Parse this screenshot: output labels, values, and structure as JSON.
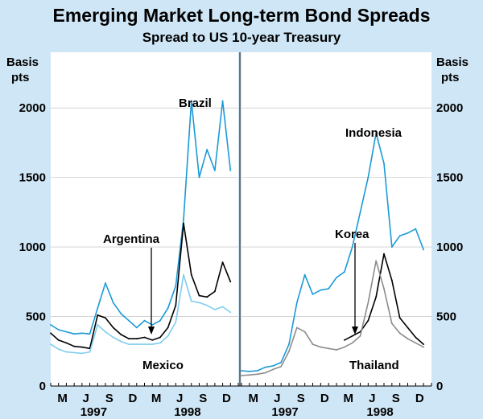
{
  "title": "Emerging Market Long-term Bond Spreads",
  "subtitle": "Spread to US 10-year Treasury",
  "colors": {
    "background": "#cfe6f6",
    "plot": "#ffffff",
    "brazil": "#1a9ad6",
    "argentina": "#000000",
    "mexico": "#7fcdee",
    "indonesia": "#1a9ad6",
    "korea": "#000000",
    "thailand": "#8c8c8c"
  },
  "chart_data": [
    {
      "type": "line",
      "panel": "left",
      "ylabel": "Basis pts",
      "ylim": [
        0,
        2400
      ],
      "yticks": [
        0,
        500,
        1000,
        1500,
        2000
      ],
      "month_ticks": [
        "M",
        "J",
        "S",
        "D",
        "M",
        "J",
        "S",
        "D"
      ],
      "years": [
        "1997",
        "1998"
      ],
      "x_range_months": [
        1,
        25
      ],
      "series": [
        {
          "name": "Brazil",
          "x": [
            1,
            2,
            3,
            4,
            5,
            6,
            7,
            8,
            9,
            10,
            11,
            12,
            13,
            14,
            15,
            16,
            17,
            18,
            19,
            20,
            21,
            22,
            23,
            24
          ],
          "values": [
            440,
            405,
            390,
            375,
            380,
            375,
            560,
            740,
            600,
            520,
            470,
            420,
            470,
            440,
            470,
            560,
            720,
            1200,
            2050,
            1500,
            1700,
            1550,
            2050,
            1550
          ]
        },
        {
          "name": "Argentina",
          "x": [
            1,
            2,
            3,
            4,
            5,
            6,
            7,
            8,
            9,
            10,
            11,
            12,
            13,
            14,
            15,
            16,
            17,
            18,
            19,
            20,
            21,
            22,
            23,
            24
          ],
          "values": [
            380,
            330,
            310,
            285,
            280,
            270,
            510,
            490,
            420,
            370,
            340,
            340,
            350,
            330,
            350,
            420,
            580,
            1170,
            800,
            650,
            640,
            680,
            890,
            750
          ]
        },
        {
          "name": "Mexico",
          "x": [
            1,
            2,
            3,
            4,
            5,
            6,
            7,
            8,
            9,
            10,
            11,
            12,
            13,
            14,
            15,
            16,
            17,
            18,
            19,
            20,
            21,
            22,
            23,
            24
          ],
          "values": [
            300,
            265,
            245,
            240,
            235,
            245,
            440,
            390,
            350,
            320,
            300,
            300,
            300,
            300,
            310,
            360,
            460,
            800,
            610,
            600,
            580,
            550,
            570,
            530
          ]
        }
      ],
      "annotations": [
        "Brazil",
        "Argentina",
        "Mexico"
      ]
    },
    {
      "type": "line",
      "panel": "right",
      "ylabel": "Basis pts",
      "ylim": [
        0,
        2400
      ],
      "yticks": [
        0,
        500,
        1000,
        1500,
        2000
      ],
      "month_ticks": [
        "M",
        "J",
        "S",
        "D",
        "M",
        "J",
        "S",
        "D"
      ],
      "years": [
        "1997",
        "1998"
      ],
      "x_range_months": [
        1,
        25
      ],
      "series": [
        {
          "name": "Indonesia",
          "x": [
            1,
            2,
            3,
            4,
            5,
            6,
            7,
            8,
            9,
            10,
            11,
            12,
            13,
            14,
            15,
            16,
            17,
            18,
            19,
            20,
            21,
            22,
            23,
            24
          ],
          "values": [
            110,
            105,
            110,
            135,
            145,
            170,
            300,
            600,
            800,
            660,
            690,
            700,
            780,
            820,
            1000,
            1250,
            1500,
            1820,
            1600,
            1000,
            1080,
            1100,
            1130,
            980
          ]
        },
        {
          "name": "Korea",
          "x": [
            14,
            15,
            16,
            17,
            18,
            19,
            20,
            21,
            22,
            23,
            24
          ],
          "values": [
            330,
            360,
            390,
            470,
            640,
            950,
            760,
            490,
            420,
            350,
            300
          ]
        },
        {
          "name": "Thailand",
          "x": [
            1,
            2,
            3,
            4,
            5,
            6,
            7,
            8,
            9,
            10,
            11,
            12,
            13,
            14,
            15,
            16,
            17,
            18,
            19,
            20,
            21,
            22,
            23,
            24
          ],
          "values": [
            75,
            80,
            85,
            95,
            120,
            140,
            250,
            420,
            390,
            300,
            280,
            270,
            260,
            280,
            310,
            360,
            600,
            900,
            700,
            450,
            380,
            340,
            310,
            280
          ]
        }
      ],
      "annotations": [
        "Indonesia",
        "Korea",
        "Thailand"
      ]
    }
  ]
}
